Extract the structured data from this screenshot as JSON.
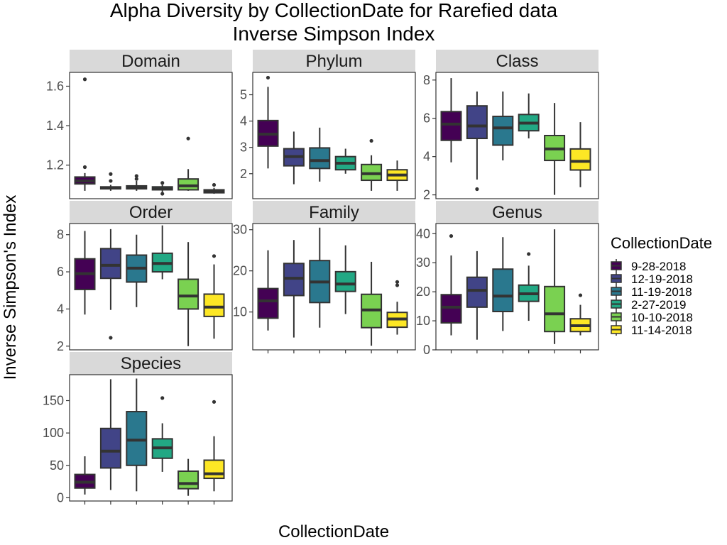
{
  "chart_data": {
    "type": "box",
    "title": "Alpha Diversity by CollectionDate for Rarefied data",
    "subtitle": "Inverse Simpson Index",
    "xlabel": "CollectionDate",
    "ylabel": "Inverse Simpson's Index",
    "legend": {
      "title": "CollectionDate",
      "placement": "right",
      "entries": [
        {
          "label": "9-28-2018",
          "color": "#440154"
        },
        {
          "label": "12-19-2018",
          "color": "#414487"
        },
        {
          "label": "11-19-2018",
          "color": "#2A788E"
        },
        {
          "label": "2-27-2019",
          "color": "#22A884"
        },
        {
          "label": "10-10-2018",
          "color": "#7AD151"
        },
        {
          "label": "11-14-2018",
          "color": "#FDE725"
        }
      ]
    },
    "panels": [
      {
        "name": "Domain",
        "ylim": [
          1.03,
          1.67
        ],
        "yticks": [
          {
            "v": 1.2,
            "label": "1.2"
          },
          {
            "v": 1.4,
            "label": "1.4"
          },
          {
            "v": 1.6,
            "label": "1.6"
          }
        ],
        "boxes": [
          {
            "min": 1.07,
            "q1": 1.105,
            "median": 1.12,
            "q3": 1.14,
            "max": 1.16,
            "outliers": [
              1.19,
              1.635
            ]
          },
          {
            "min": 1.07,
            "q1": 1.08,
            "median": 1.085,
            "q3": 1.09,
            "max": 1.1,
            "outliers": [
              1.12,
              1.155
            ]
          },
          {
            "min": 1.07,
            "q1": 1.08,
            "median": 1.085,
            "q3": 1.095,
            "max": 1.12,
            "outliers": [
              1.13,
              1.145
            ]
          },
          {
            "min": 1.06,
            "q1": 1.075,
            "median": 1.08,
            "q3": 1.09,
            "max": 1.1,
            "outliers": [
              1.055,
              1.11
            ]
          },
          {
            "min": 1.07,
            "q1": 1.075,
            "median": 1.095,
            "q3": 1.13,
            "max": 1.18,
            "outliers": [
              1.335
            ]
          },
          {
            "min": 1.055,
            "q1": 1.06,
            "median": 1.065,
            "q3": 1.075,
            "max": 1.085,
            "outliers": [
              1.1
            ]
          }
        ]
      },
      {
        "name": "Phylum",
        "ylim": [
          1.05,
          5.85
        ],
        "yticks": [
          {
            "v": 2,
            "label": "2"
          },
          {
            "v": 3,
            "label": "3"
          },
          {
            "v": 4,
            "label": "4"
          },
          {
            "v": 5,
            "label": "5"
          }
        ],
        "boxes": [
          {
            "min": 2.2,
            "q1": 3.05,
            "median": 3.5,
            "q3": 4.02,
            "max": 5.3,
            "outliers": [
              5.65
            ]
          },
          {
            "min": 1.6,
            "q1": 2.3,
            "median": 2.65,
            "q3": 2.95,
            "max": 3.6,
            "outliers": []
          },
          {
            "min": 1.7,
            "q1": 2.2,
            "median": 2.5,
            "q3": 2.98,
            "max": 3.75,
            "outliers": []
          },
          {
            "min": 2.0,
            "q1": 2.15,
            "median": 2.4,
            "q3": 2.65,
            "max": 2.95,
            "outliers": []
          },
          {
            "min": 1.35,
            "q1": 1.75,
            "median": 2.0,
            "q3": 2.35,
            "max": 2.7,
            "outliers": [
              3.25
            ]
          },
          {
            "min": 1.35,
            "q1": 1.75,
            "median": 1.95,
            "q3": 2.15,
            "max": 2.5,
            "outliers": []
          }
        ]
      },
      {
        "name": "Class",
        "ylim": [
          1.8,
          8.4
        ],
        "yticks": [
          {
            "v": 2,
            "label": "2"
          },
          {
            "v": 4,
            "label": "4"
          },
          {
            "v": 6,
            "label": "6"
          },
          {
            "v": 8,
            "label": "8"
          }
        ],
        "boxes": [
          {
            "min": 3.7,
            "q1": 4.85,
            "median": 5.7,
            "q3": 6.35,
            "max": 8.1,
            "outliers": []
          },
          {
            "min": 2.8,
            "q1": 4.95,
            "median": 5.6,
            "q3": 6.65,
            "max": 7.4,
            "outliers": [
              2.3
            ]
          },
          {
            "min": 3.8,
            "q1": 4.6,
            "median": 5.5,
            "q3": 6.1,
            "max": 7.4,
            "outliers": []
          },
          {
            "min": 4.95,
            "q1": 5.35,
            "median": 5.75,
            "q3": 6.2,
            "max": 7.3,
            "outliers": []
          },
          {
            "min": 2.0,
            "q1": 3.8,
            "median": 4.4,
            "q3": 5.1,
            "max": 6.8,
            "outliers": []
          },
          {
            "min": 2.4,
            "q1": 3.3,
            "median": 3.75,
            "q3": 4.4,
            "max": 5.8,
            "outliers": []
          }
        ]
      },
      {
        "name": "Order",
        "ylim": [
          1.8,
          8.6
        ],
        "yticks": [
          {
            "v": 2,
            "label": "2"
          },
          {
            "v": 4,
            "label": "4"
          },
          {
            "v": 6,
            "label": "6"
          },
          {
            "v": 8,
            "label": "8"
          }
        ],
        "boxes": [
          {
            "min": 3.7,
            "q1": 5.05,
            "median": 5.9,
            "q3": 6.7,
            "max": 8.2,
            "outliers": []
          },
          {
            "min": 3.95,
            "q1": 5.65,
            "median": 6.35,
            "q3": 7.25,
            "max": 8.3,
            "outliers": [
              2.45
            ]
          },
          {
            "min": 4.1,
            "q1": 5.45,
            "median": 6.2,
            "q3": 6.9,
            "max": 8.0,
            "outliers": []
          },
          {
            "min": 5.6,
            "q1": 6.0,
            "median": 6.45,
            "q3": 7.0,
            "max": 8.5,
            "outliers": []
          },
          {
            "min": 2.0,
            "q1": 4.0,
            "median": 4.7,
            "q3": 5.6,
            "max": 7.6,
            "outliers": []
          },
          {
            "min": 2.4,
            "q1": 3.6,
            "median": 4.1,
            "q3": 4.8,
            "max": 6.4,
            "outliers": [
              6.85
            ]
          }
        ]
      },
      {
        "name": "Family",
        "ylim": [
          0.8,
          31.5
        ],
        "yticks": [
          {
            "v": 10,
            "label": "10"
          },
          {
            "v": 20,
            "label": "20"
          },
          {
            "v": 30,
            "label": "30"
          }
        ],
        "boxes": [
          {
            "min": 5.5,
            "q1": 8.5,
            "median": 12.7,
            "q3": 15.7,
            "max": 25.0,
            "outliers": []
          },
          {
            "min": 3.8,
            "q1": 14.0,
            "median": 18.2,
            "q3": 21.8,
            "max": 27.5,
            "outliers": []
          },
          {
            "min": 6.2,
            "q1": 12.3,
            "median": 17.3,
            "q3": 22.5,
            "max": 30.5,
            "outliers": []
          },
          {
            "min": 9.5,
            "q1": 15.0,
            "median": 16.8,
            "q3": 19.8,
            "max": 26.2,
            "outliers": []
          },
          {
            "min": 1.8,
            "q1": 6.2,
            "median": 10.5,
            "q3": 14.3,
            "max": 22.2,
            "outliers": []
          },
          {
            "min": 4.5,
            "q1": 6.3,
            "median": 8.3,
            "q3": 9.9,
            "max": 12.5,
            "outliers": [
              16.5,
              17.3
            ]
          }
        ]
      },
      {
        "name": "Genus",
        "ylim": [
          0,
          43.5
        ],
        "yticks": [
          {
            "v": 0,
            "label": "0"
          },
          {
            "v": 10,
            "label": "10"
          },
          {
            "v": 20,
            "label": "20"
          },
          {
            "v": 30,
            "label": "30"
          },
          {
            "v": 40,
            "label": "40"
          }
        ],
        "boxes": [
          {
            "min": 5.0,
            "q1": 9.3,
            "median": 14.7,
            "q3": 19.0,
            "max": 32.5,
            "outliers": [
              39.2
            ]
          },
          {
            "min": 3.5,
            "q1": 14.7,
            "median": 20.5,
            "q3": 25.0,
            "max": 34.0,
            "outliers": []
          },
          {
            "min": 6.5,
            "q1": 13.2,
            "median": 18.5,
            "q3": 27.8,
            "max": 38.8,
            "outliers": []
          },
          {
            "min": 10.0,
            "q1": 16.7,
            "median": 19.3,
            "q3": 22.3,
            "max": 29.0,
            "outliers": [
              33.0
            ]
          },
          {
            "min": 2.0,
            "q1": 6.3,
            "median": 12.4,
            "q3": 21.8,
            "max": 41.5,
            "outliers": []
          },
          {
            "min": 5.0,
            "q1": 6.3,
            "median": 8.3,
            "q3": 10.7,
            "max": 15.5,
            "outliers": [
              18.8
            ]
          }
        ]
      },
      {
        "name": "Species",
        "ylim": [
          -5,
          190
        ],
        "yticks": [
          {
            "v": 0,
            "label": "0"
          },
          {
            "v": 50,
            "label": "50"
          },
          {
            "v": 100,
            "label": "100"
          },
          {
            "v": 150,
            "label": "150"
          }
        ],
        "boxes": [
          {
            "min": 5.0,
            "q1": 15.0,
            "median": 24.0,
            "q3": 36.0,
            "max": 64.0,
            "outliers": []
          },
          {
            "min": 12.0,
            "q1": 46.0,
            "median": 72.0,
            "q3": 107.0,
            "max": 183.0,
            "outliers": []
          },
          {
            "min": 10.0,
            "q1": 50.0,
            "median": 89.0,
            "q3": 133.0,
            "max": 184.0,
            "outliers": []
          },
          {
            "min": 40.0,
            "q1": 61.0,
            "median": 77.0,
            "q3": 91.0,
            "max": 115.0,
            "outliers": [
              154.0
            ]
          },
          {
            "min": 3.0,
            "q1": 14.0,
            "median": 22.0,
            "q3": 41.0,
            "max": 60.0,
            "outliers": []
          },
          {
            "min": 10.0,
            "q1": 30.0,
            "median": 37.0,
            "q3": 58.0,
            "max": 95.0,
            "outliers": [
              148.0
            ]
          }
        ]
      }
    ]
  }
}
